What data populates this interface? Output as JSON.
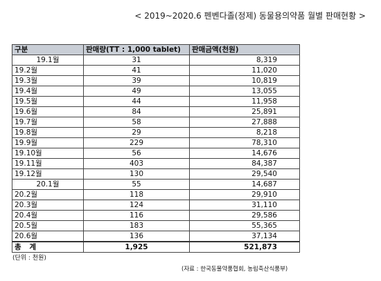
{
  "title": "< 2019~2020.6 펜벤다졸(정제) 동물용의약품 월별 판매현황 >",
  "table": {
    "headers": [
      "구분",
      "판매량(TT : 1,000 tablet)",
      "판매금액(천원)"
    ],
    "rows": [
      {
        "month": "19.1월",
        "qty": "31",
        "amount": "8,319",
        "first": true
      },
      {
        "month": "19.2월",
        "qty": "41",
        "amount": "11,020"
      },
      {
        "month": "19.3월",
        "qty": "39",
        "amount": "10,819"
      },
      {
        "month": "19.4월",
        "qty": "49",
        "amount": "13,055"
      },
      {
        "month": "19.5월",
        "qty": "44",
        "amount": "11,958"
      },
      {
        "month": "19.6월",
        "qty": "84",
        "amount": "25,891"
      },
      {
        "month": "19.7월",
        "qty": "58",
        "amount": "27,888"
      },
      {
        "month": "19.8월",
        "qty": "29",
        "amount": "8,218"
      },
      {
        "month": "19.9월",
        "qty": "229",
        "amount": "78,310"
      },
      {
        "month": "19.10월",
        "qty": "56",
        "amount": "14,676"
      },
      {
        "month": "19.11월",
        "qty": "403",
        "amount": "84,387"
      },
      {
        "month": "19.12월",
        "qty": "130",
        "amount": "29,540"
      },
      {
        "month": "20.1월",
        "qty": "55",
        "amount": "14,687",
        "first": true
      },
      {
        "month": "20.2월",
        "qty": "118",
        "amount": "29,910"
      },
      {
        "month": "20.3월",
        "qty": "124",
        "amount": "31,110"
      },
      {
        "month": "20.4월",
        "qty": "116",
        "amount": "29,586"
      },
      {
        "month": "20.5월",
        "qty": "183",
        "amount": "55,365"
      },
      {
        "month": "20.6월",
        "qty": "136",
        "amount": "37,134"
      }
    ],
    "total": {
      "label": "총 계",
      "qty": "1,925",
      "amount": "521,873"
    }
  },
  "unit_note": "(단위 : 천원)",
  "source_note": "(자료 : 한국동물약품협회, 농림축산식품부)"
}
